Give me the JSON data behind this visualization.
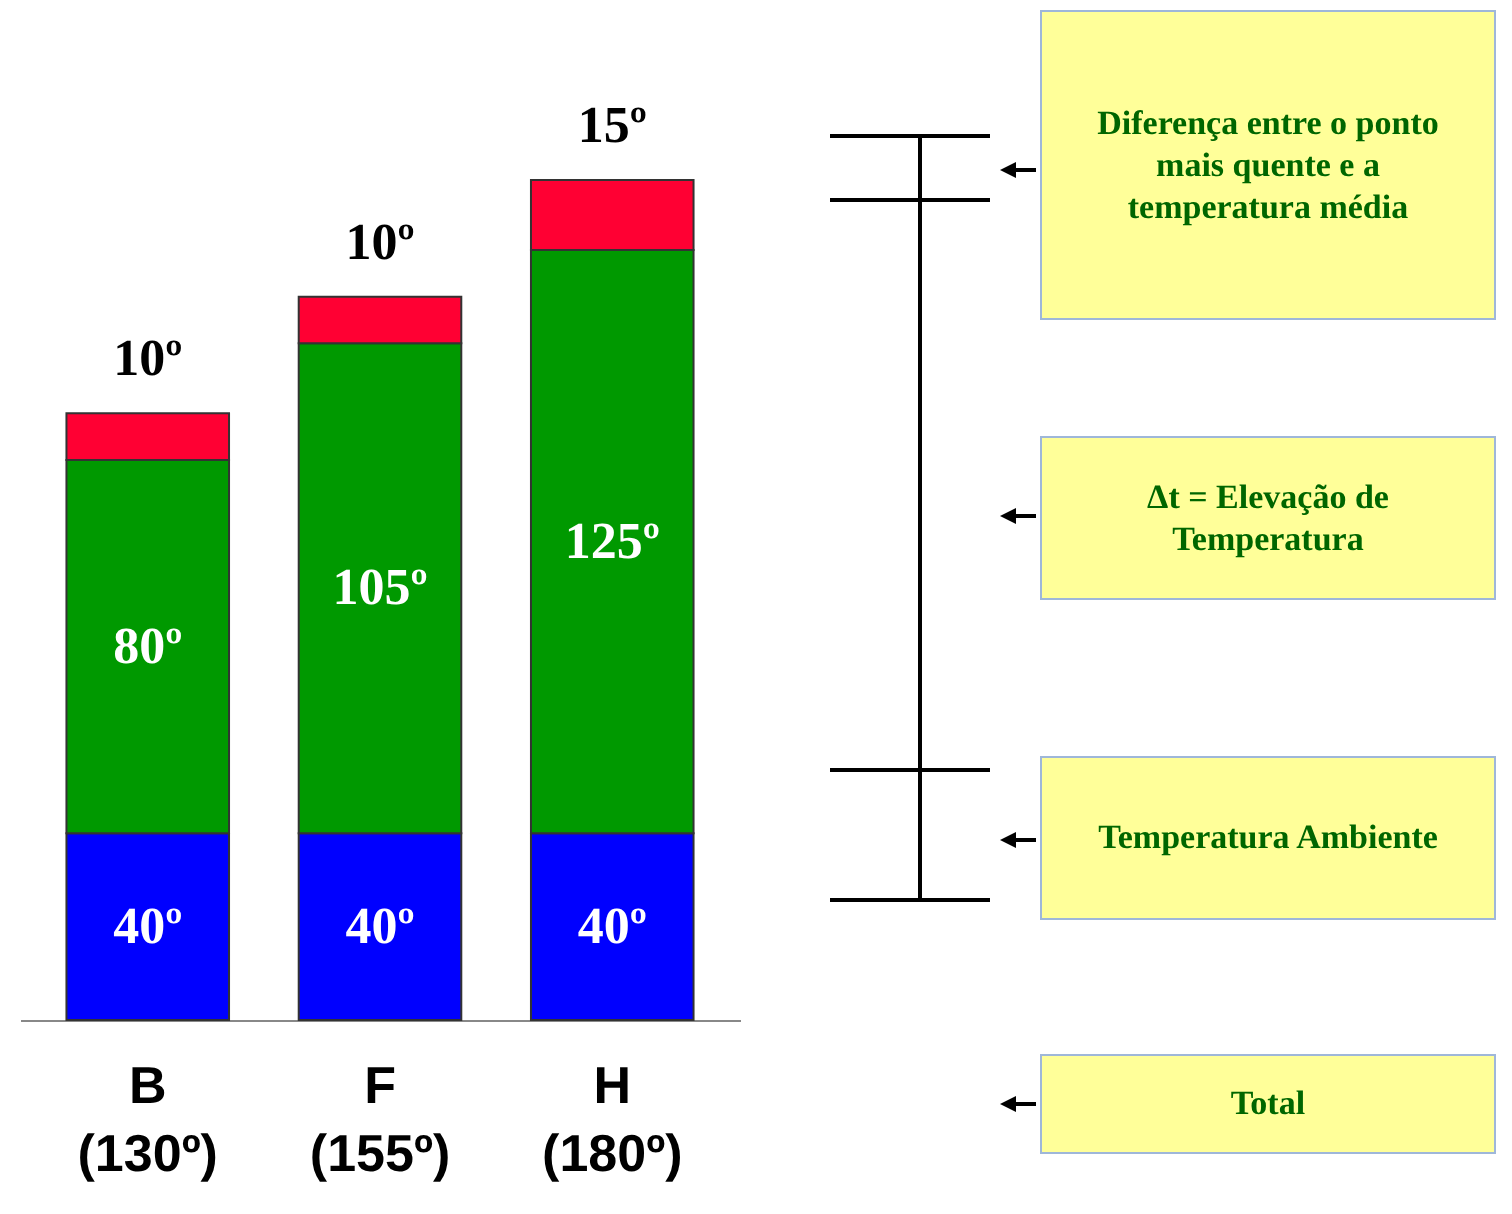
{
  "chart_data": {
    "type": "bar",
    "stacked": true,
    "categories": [
      "B (130º)",
      "F (155º)",
      "H (180º)"
    ],
    "series": [
      {
        "color": "#0000ff",
        "values": [
          40,
          40,
          40
        ],
        "value_labels": [
          "40º",
          "40º",
          "40º"
        ]
      },
      {
        "color": "#009900",
        "values": [
          80,
          105,
          125
        ],
        "value_labels": [
          "80º",
          "105º",
          "125º"
        ]
      },
      {
        "color": "#ff0033",
        "values": [
          10,
          10,
          15
        ],
        "value_labels": [
          "10º",
          "10º",
          "15º"
        ]
      }
    ],
    "annotations": [
      "Diferença entre o ponto mais quente e a temperatura média",
      "Δt = Elevação de Temperatura",
      "Temperatura Ambiente",
      "Total"
    ]
  }
}
